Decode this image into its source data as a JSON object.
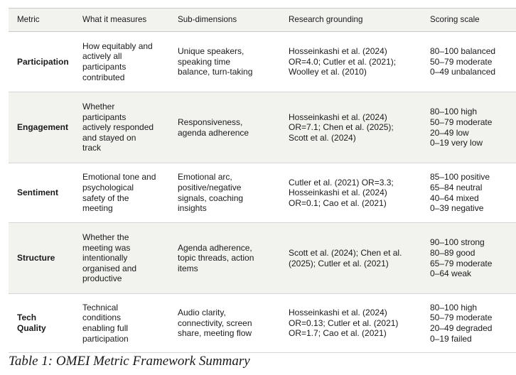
{
  "table": {
    "headers": [
      "Metric",
      "What it measures",
      "Sub-dimensions",
      "Research grounding",
      "Scoring scale"
    ],
    "rows": [
      {
        "metric": "Participation",
        "measures": "How equitably and\nactively all\nparticipants\ncontributed",
        "subdims": "Unique speakers,\nspeaking time\nbalance, turn-taking",
        "research": "Hosseinkashi et al. (2024)\nOR=4.0; Cutler et al. (2021);\nWoolley et al. (2010)",
        "scale": "80–100 balanced\n50–79 moderate\n0–49 unbalanced"
      },
      {
        "metric": "Engagement",
        "measures": "Whether\nparticipants\nactively responded\nand stayed on\ntrack",
        "subdims": "Responsiveness,\nagenda adherence",
        "research": "Hosseinkashi et al. (2024)\nOR=7.1; Chen et al. (2025);\nScott et al. (2024)",
        "scale": "80–100 high\n50–79 moderate\n20–49 low\n0–19 very low"
      },
      {
        "metric": "Sentiment",
        "measures": "Emotional tone and\npsychological\nsafety of the\nmeeting",
        "subdims": "Emotional arc,\npositive/negative\nsignals, coaching\ninsights",
        "research": "Cutler et al. (2021) OR=3.3;\nHosseinkashi et al. (2024)\nOR=0.1; Cao et al. (2021)",
        "scale": "85–100 positive\n65–84 neutral\n40–64 mixed\n0–39 negative"
      },
      {
        "metric": "Structure",
        "measures": "Whether the\nmeeting was\nintentionally\norganised and\nproductive",
        "subdims": "Agenda adherence,\ntopic threads, action\nitems",
        "research": "Scott et al. (2024); Chen et al.\n(2025); Cutler et al. (2021)",
        "scale": "90–100 strong\n80–89 good\n65–79 moderate\n0–64 weak"
      },
      {
        "metric": "Tech\nQuality",
        "measures": "Technical\nconditions\nenabling full\nparticipation",
        "subdims": "Audio clarity,\nconnectivity, screen\nshare, meeting flow",
        "research": "Hosseinkashi et al. (2024)\nOR=0.13; Cutler et al. (2021)\nOR=1.7; Cao et al. (2021)",
        "scale": "80–100 high\n50–79 moderate\n20–49 degraded\n0–19 failed"
      }
    ]
  },
  "caption": "Table 1: OMEI Metric Framework Summary"
}
